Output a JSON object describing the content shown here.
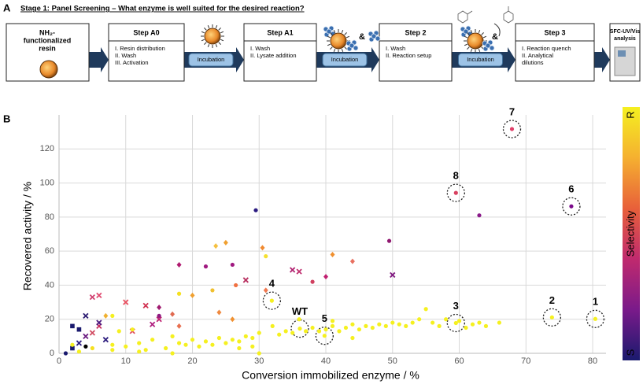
{
  "panels": {
    "a": "A",
    "b": "B"
  },
  "workflow": {
    "title": "Stage 1: Panel Screening – What enzyme is well suited for the desired reaction?",
    "start": [
      "NH₂-",
      "functionalized",
      "resin"
    ],
    "steps": [
      {
        "title": "Step A0",
        "items": [
          "I.   Resin distribution",
          "II.  Wash",
          "III. Activation"
        ]
      },
      {
        "title": "Step A1",
        "items": [
          "I.   Wash",
          "II.  Lysate addition"
        ]
      },
      {
        "title": "Step 2",
        "items": [
          "I.   Wash",
          "II.  Reaction setup"
        ]
      },
      {
        "title": "Step 3",
        "items": [
          "I.   Reaction quench",
          "II.  Analytical",
          "      dilutions"
        ]
      }
    ],
    "incubation": [
      "Incubation",
      "Incubation",
      "Incubation"
    ],
    "ampersands": [
      "&",
      "&"
    ],
    "end": [
      "SFC-UV/Vis",
      "analysis"
    ]
  },
  "chart_data": {
    "type": "scatter",
    "xlabel": "Conversion immobilized  enzyme  / %",
    "ylabel": "Recovered activity / %",
    "xlim": [
      0,
      82
    ],
    "ylim": [
      0,
      140
    ],
    "xticks": [
      0,
      10,
      20,
      30,
      40,
      50,
      60,
      70,
      80
    ],
    "yticks": [
      0,
      20,
      40,
      60,
      80,
      100,
      120
    ],
    "grid": true,
    "colorbar": {
      "label": "Selectivity",
      "top": "R",
      "bottom": "S",
      "colors": [
        "#f5f020",
        "#f5b030",
        "#e8603a",
        "#c02a6e",
        "#7a1a8a",
        "#1a1a6e"
      ]
    },
    "x": [
      67.9,
      59.5,
      76.8,
      31.9,
      36.1,
      39.8,
      59.5,
      73.9,
      80.4,
      29.5,
      63,
      23.5,
      25,
      30.5,
      31,
      41,
      44,
      49.5,
      50,
      40,
      35,
      36,
      18,
      22,
      26,
      28,
      38,
      26.5,
      23,
      20,
      18,
      31,
      13,
      10,
      15,
      17,
      14,
      15,
      15,
      18,
      24,
      26,
      11,
      6,
      5,
      4,
      3,
      2,
      3,
      4,
      5,
      6,
      7,
      7,
      2,
      1,
      5,
      6,
      8,
      10,
      11,
      12,
      13,
      14,
      16,
      17,
      18,
      19,
      20,
      21,
      22,
      23,
      24,
      25,
      26,
      27,
      28,
      29,
      30,
      30,
      33,
      34,
      35,
      37,
      38,
      40,
      41,
      42,
      43,
      44,
      45,
      46,
      47,
      48,
      49,
      50,
      51,
      52,
      53,
      54,
      55,
      56,
      57,
      58,
      60,
      61,
      62,
      63,
      64,
      66,
      44,
      39,
      41,
      32,
      36,
      29,
      27,
      17,
      12,
      9,
      8,
      8,
      3,
      2,
      4
    ],
    "y": [
      131.7,
      94.2,
      86.3,
      30.9,
      14.5,
      10.3,
      17.8,
      21.1,
      20.2,
      84,
      81,
      63,
      65,
      62,
      57,
      58,
      54,
      66,
      46,
      45,
      49,
      48,
      52,
      51,
      52,
      43,
      42,
      40,
      37,
      34,
      35,
      37,
      28,
      30,
      27,
      23,
      17,
      20,
      22,
      16,
      24,
      20,
      13,
      34,
      33,
      22,
      14,
      16,
      6,
      10,
      12,
      16,
      22,
      8,
      3,
      0,
      3,
      18,
      5,
      4,
      14,
      6,
      2,
      8,
      3,
      10,
      6,
      5,
      8,
      4,
      7,
      5,
      9,
      6,
      8,
      7,
      10,
      9,
      12,
      0,
      11,
      13,
      12,
      13,
      15,
      14,
      16,
      13,
      15,
      17,
      14,
      16,
      15,
      17,
      16,
      18,
      17,
      16,
      18,
      20,
      26,
      18,
      16,
      20,
      19,
      15,
      17,
      18,
      16,
      18,
      9,
      13,
      19,
      16,
      20,
      4,
      3,
      0,
      1,
      13,
      22,
      2,
      1,
      5,
      4
    ],
    "point_labels": [
      "7",
      "8",
      "6",
      "4",
      "WT",
      "5",
      "3",
      "2",
      "1",
      null,
      null,
      null,
      null,
      null,
      null,
      null,
      null,
      null,
      null,
      null,
      null,
      null,
      null,
      null,
      null,
      null,
      null,
      null,
      null,
      null,
      null,
      null,
      null,
      null,
      null,
      null,
      null,
      null,
      null,
      null,
      null,
      null,
      null,
      null,
      null,
      null,
      null,
      null,
      null,
      null,
      null,
      null,
      null,
      null,
      null,
      null,
      null,
      null,
      null,
      null,
      null,
      null,
      null,
      null,
      null,
      null,
      null,
      null,
      null,
      null,
      null,
      null,
      null,
      null,
      null,
      null,
      null,
      null,
      null,
      null,
      null,
      null,
      null,
      null,
      null,
      null,
      null,
      null,
      null,
      null,
      null,
      null,
      null,
      null,
      null,
      null,
      null,
      null,
      null,
      null,
      null,
      null,
      null,
      null,
      null,
      null,
      null,
      null,
      null,
      null,
      null,
      null,
      null,
      null,
      null,
      null,
      null,
      null,
      null,
      null,
      null,
      null,
      null,
      null,
      null
    ],
    "colors": [
      "#e0406a",
      "#d84060",
      "#7a0a8a",
      "#f5f020",
      "#f5f020",
      "#f5f020",
      "#f5f020",
      "#f5f020",
      "#f5f020",
      "#2a1a80",
      "#8a1a8a",
      "#f5c040",
      "#f0a030",
      "#f08a30",
      "#f5e030",
      "#f09030",
      "#e87060",
      "#901870",
      "#801a80",
      "#c02070",
      "#b02070",
      "#c03070",
      "#b01a70",
      "#a01a80",
      "#a01880",
      "#b83060",
      "#d04060",
      "#f07040",
      "#f0c030",
      "#f0a030",
      "#f5e020",
      "#f07850",
      "#d03050",
      "#e85060",
      "#a01c70",
      "#e06a50",
      "#b02080",
      "#c02070",
      "#901a80",
      "#e87050",
      "#f08a40",
      "#f09030",
      "#e05060",
      "#e04a70",
      "#d04070",
      "#2a1a70",
      "#1a1a6e",
      "#1a1a6e",
      "#2a1a80",
      "#6a1a80",
      "#d04a60",
      "#c83060",
      "#f0b030",
      "#302080",
      "#1a1a6e",
      "#1a1a6e",
      "#f5e020",
      "#4a1a80",
      "#f5f020",
      "#f5f020",
      "#f5f020",
      "#f5f020",
      "#f5f020",
      "#f5f020",
      "#f5f020",
      "#f5f020",
      "#f5f020",
      "#f5f020",
      "#f5f020",
      "#f5f020",
      "#f5f020",
      "#f5f020",
      "#f5f020",
      "#f5f020",
      "#f5f020",
      "#f5f020",
      "#f5f020",
      "#f5f020",
      "#f5f020",
      "#f5f020",
      "#f5f020",
      "#f5f020",
      "#f5f020",
      "#f5f020",
      "#f5f020",
      "#f5f020",
      "#f5f020",
      "#f5f020",
      "#f5f020",
      "#f5f020",
      "#f5f020",
      "#f5f020",
      "#f5f020",
      "#f5f020",
      "#f5f020",
      "#f5f020",
      "#f5f020",
      "#f5f020",
      "#f5f020",
      "#f5f020",
      "#f5f020",
      "#f5f020",
      "#f5f020",
      "#f5f020",
      "#f5f020",
      "#f5f020",
      "#f5f020",
      "#f5f020",
      "#f5f020",
      "#f5f020",
      "#f5f020",
      "#f5f020",
      "#f5f020",
      "#f5f020",
      "#f5f020",
      "#f5f020",
      "#f5f020",
      "#f5f020",
      "#f5f020",
      "#f5f020",
      "#f5f020",
      "#f5f020",
      "#f5f020",
      "#f5f020"
    ],
    "markers": [
      "circle",
      "circle",
      "circle",
      "circle",
      "circle",
      "circle",
      "circle",
      "circle",
      "circle",
      "circle",
      "circle",
      "diamond",
      "diamond",
      "diamond",
      "circle",
      "diamond",
      "diamond",
      "circle",
      "cross",
      "diamond",
      "cross",
      "cross",
      "diamond",
      "circle",
      "circle",
      "cross",
      "circle",
      "circle",
      "circle",
      "diamond",
      "circle",
      "diamond",
      "cross",
      "cross",
      "diamond",
      "diamond",
      "cross",
      "cross",
      "circle",
      "diamond",
      "diamond",
      "diamond",
      "cross",
      "cross",
      "cross",
      "cross",
      "square",
      "square",
      "cross",
      "cross",
      "cross",
      "cross",
      "diamond",
      "cross",
      "square",
      "circle",
      "circle",
      "cross",
      "circle",
      "circle",
      "circle",
      "circle",
      "circle",
      "circle",
      "circle",
      "circle",
      "circle",
      "circle",
      "circle",
      "circle",
      "circle",
      "circle",
      "circle",
      "circle",
      "circle",
      "circle",
      "circle",
      "circle",
      "circle",
      "circle",
      "circle",
      "circle",
      "circle",
      "circle",
      "circle",
      "circle",
      "circle",
      "circle",
      "circle",
      "circle",
      "circle",
      "circle",
      "circle",
      "circle",
      "circle",
      "circle",
      "circle",
      "circle",
      "circle",
      "circle",
      "circle",
      "circle",
      "circle",
      "circle",
      "circle",
      "circle",
      "circle",
      "circle",
      "circle",
      "circle",
      "circle",
      "circle",
      "circle",
      "circle",
      "circle",
      "circle",
      "circle",
      "circle",
      "circle",
      "circle",
      "circle",
      "circle",
      "circle",
      "circle"
    ]
  }
}
